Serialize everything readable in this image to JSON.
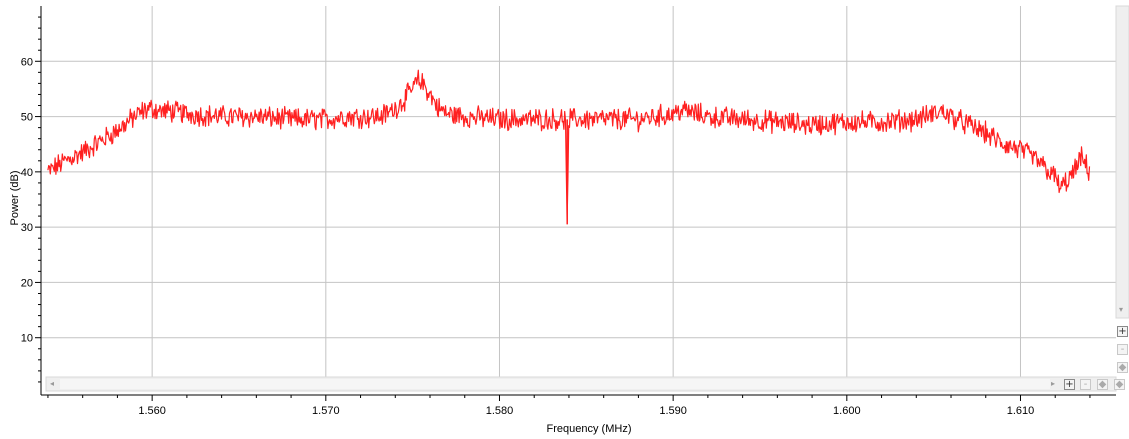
{
  "chart_data": {
    "type": "line",
    "title": "",
    "xlabel": "Frequency (MHz)",
    "ylabel": "Power (dB)",
    "xlim": [
      1.5536,
      1.6155
    ],
    "ylim": [
      0,
      70
    ],
    "grid": true,
    "x_tick_labels": [
      "1.560",
      "1.570",
      "1.580",
      "1.590",
      "1.600",
      "1.610"
    ],
    "x_ticks": [
      1.56,
      1.57,
      1.58,
      1.59,
      1.6,
      1.61
    ],
    "y_tick_labels": [
      "60",
      "50",
      "40",
      "30",
      "20",
      "10"
    ],
    "y_ticks": [
      60,
      50,
      40,
      30,
      20,
      10
    ],
    "line_color": "#ff2020",
    "series": [
      {
        "x": [
          1.554,
          1.555,
          1.556,
          1.557,
          1.558,
          1.559,
          1.5595,
          1.56,
          1.5605,
          1.561,
          1.562,
          1.564,
          1.566,
          1.568,
          1.57,
          1.571,
          1.572,
          1.573,
          1.5735,
          1.574,
          1.5745,
          1.575,
          1.5753,
          1.5756,
          1.576,
          1.5765,
          1.577,
          1.578,
          1.58,
          1.582,
          1.5838,
          1.5839,
          1.584,
          1.5841,
          1.5842,
          1.586,
          1.588,
          1.59,
          1.5905,
          1.592,
          1.594,
          1.596,
          1.598,
          1.6,
          1.602,
          1.604,
          1.605,
          1.6055,
          1.606,
          1.607,
          1.608,
          1.609,
          1.61,
          1.611,
          1.6115,
          1.612,
          1.6123,
          1.6126,
          1.613,
          1.6135,
          1.614
        ],
        "y": [
          40,
          42,
          43.5,
          45.5,
          47.5,
          50,
          51,
          51.5,
          51,
          51,
          50.5,
          50,
          50,
          49.5,
          49.5,
          50,
          50,
          50,
          50.5,
          51.5,
          53,
          55,
          56.5,
          56,
          54,
          51.5,
          50.5,
          50,
          49.5,
          49.5,
          49.5,
          30.5,
          49.5,
          49.5,
          49.5,
          49.5,
          49.5,
          50.5,
          51.2,
          50,
          49.5,
          49,
          48.5,
          49,
          49,
          49.5,
          50.5,
          51,
          50,
          48.5,
          47,
          45,
          44,
          42,
          40.5,
          39,
          37,
          38,
          39.5,
          42.5,
          40
        ]
      }
    ]
  },
  "ui": {
    "hscroll": {
      "left_arrow": "◂",
      "right_arrow": "▸"
    },
    "vscroll": {
      "down_arrow": "▾"
    },
    "zoom": {
      "plus": "+",
      "minus": "-",
      "pan": "◆"
    }
  }
}
